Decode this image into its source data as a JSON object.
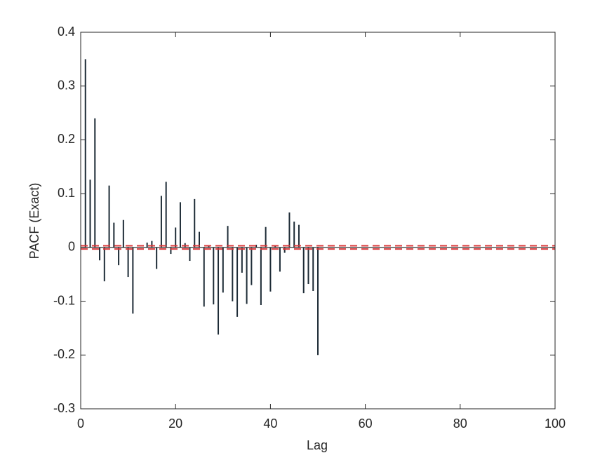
{
  "chart_data": {
    "type": "stem",
    "xlabel": "Lag",
    "ylabel": "PACF (Exact)",
    "x": [
      1,
      2,
      3,
      4,
      5,
      6,
      7,
      8,
      9,
      10,
      11,
      12,
      13,
      14,
      15,
      16,
      17,
      18,
      19,
      20,
      21,
      22,
      23,
      24,
      25,
      26,
      27,
      28,
      29,
      30,
      31,
      32,
      33,
      34,
      35,
      36,
      37,
      38,
      39,
      40,
      41,
      42,
      43,
      44,
      45,
      46,
      47,
      48,
      49,
      50
    ],
    "values": [
      0.35,
      0.126,
      0.24,
      -0.024,
      -0.063,
      0.115,
      0.046,
      -0.033,
      0.051,
      -0.055,
      -0.123,
      0,
      0,
      0.009,
      0.012,
      -0.04,
      0.096,
      0.122,
      -0.012,
      0.037,
      0.084,
      0.008,
      -0.025,
      0.09,
      0.029,
      -0.11,
      0.004,
      -0.106,
      -0.162,
      -0.084,
      0.04,
      -0.1,
      -0.129,
      -0.047,
      -0.105,
      -0.07,
      0.005,
      -0.107,
      0.038,
      -0.082,
      0.002,
      -0.045,
      -0.01,
      0.065,
      0.048,
      0.042,
      -0.085,
      -0.068,
      -0.081,
      -0.2
    ],
    "color": "#1d2b36",
    "confidence_bounds": [
      0.003,
      -0.003
    ],
    "bound_color": "#d9383a",
    "xlim": [
      0,
      100
    ],
    "xticks": [
      0,
      20,
      40,
      60,
      80,
      100
    ],
    "ylim": [
      -0.3,
      0.4
    ],
    "yticks": [
      -0.3,
      -0.2,
      -0.1,
      0,
      0.1,
      0.2,
      0.3,
      0.4
    ]
  }
}
